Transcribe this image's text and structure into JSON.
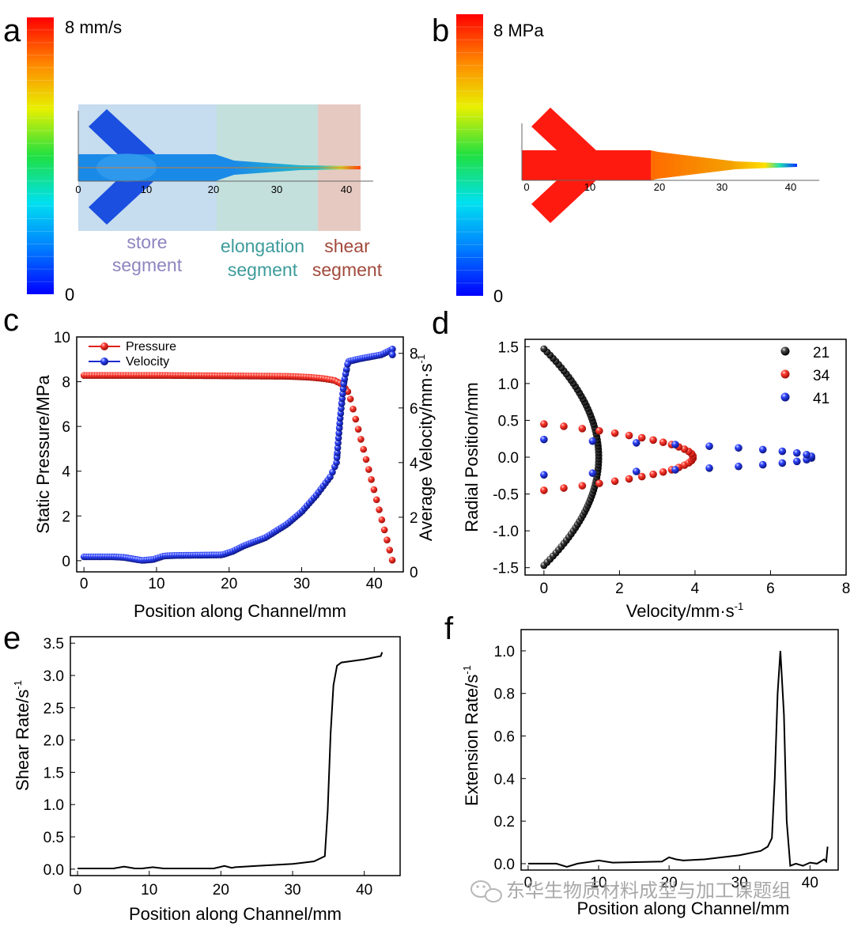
{
  "panels": {
    "a": {
      "letter": "a",
      "colorbar": {
        "max_label": "8 mm/s",
        "min_label": "0"
      },
      "axis_ticks": [
        "0",
        "10",
        "20",
        "30",
        "40"
      ],
      "segments": [
        {
          "line1": "store",
          "line2": "segment",
          "color": "#8f84c0",
          "bg": "#c6dcef"
        },
        {
          "line1": "elongation",
          "line2": "segment",
          "color": "#3e9b9b",
          "bg": "#c4e0dc"
        },
        {
          "line1": "shear",
          "line2": "segment",
          "color": "#a14a3c",
          "bg": "#e6cac2"
        }
      ]
    },
    "b": {
      "letter": "b",
      "colorbar": {
        "max_label": "8 MPa",
        "min_label": "0"
      },
      "axis_ticks": [
        "0",
        "10",
        "20",
        "30",
        "40"
      ]
    },
    "c": {
      "letter": "c"
    },
    "d": {
      "letter": "d"
    },
    "e": {
      "letter": "e"
    },
    "f": {
      "letter": "f"
    }
  },
  "watermark": {
    "text": "东华生物质材料成型与加工课题组",
    "icon": "wechat-icon"
  },
  "chart_data": [
    {
      "id": "c",
      "type": "scatter",
      "xlabel": "Position along Channel/mm",
      "ylabel": "Static Pressure/MPa",
      "ylabel_right": "Average Velocity/mm·s",
      "ylabel_right_sup": "-1",
      "xlim": [
        -1,
        44
      ],
      "ylim": [
        -0.5,
        10
      ],
      "ylim_right": [
        0,
        8.6
      ],
      "xticks": [
        0,
        10,
        20,
        30,
        40
      ],
      "yticks": [
        0,
        2,
        4,
        6,
        8,
        10
      ],
      "yticks_right": [
        0,
        2,
        4,
        6,
        8
      ],
      "legend": [
        {
          "name": "Pressure",
          "color": "#e0201c"
        },
        {
          "name": "Velocity",
          "color": "#1f2bd0"
        }
      ],
      "series": [
        {
          "name": "Pressure",
          "axis": "left",
          "color": "#e0201c",
          "x": [
            0,
            10,
            20,
            28,
            31,
            33,
            34.5,
            35.5,
            36.5,
            42.5
          ],
          "y": [
            8.28,
            8.28,
            8.26,
            8.24,
            8.2,
            8.14,
            8.06,
            7.9,
            7.5,
            0
          ]
        },
        {
          "name": "Velocity",
          "axis": "right",
          "color": "#1f2bd0",
          "x": [
            0,
            4,
            5.5,
            8,
            9.5,
            11,
            12.5,
            19,
            20.5,
            22,
            25,
            28,
            30,
            32,
            34,
            34.8,
            35.3,
            35.8,
            36.4,
            38,
            41,
            42.5
          ],
          "y": [
            0.55,
            0.55,
            0.53,
            0.42,
            0.45,
            0.58,
            0.6,
            0.62,
            0.75,
            0.95,
            1.25,
            1.75,
            2.2,
            2.8,
            3.5,
            4.0,
            5.6,
            6.9,
            7.7,
            7.8,
            7.95,
            8.15
          ]
        }
      ]
    },
    {
      "id": "d",
      "type": "scatter",
      "xlabel": "Velocity/mm·s",
      "xlabel_sup": "-1",
      "ylabel": "Radial Position/mm",
      "xlim": [
        -0.5,
        8
      ],
      "ylim": [
        -1.6,
        1.6
      ],
      "xticks": [
        0,
        2,
        4,
        6,
        8
      ],
      "yticks": [
        1.5,
        1.0,
        0.5,
        0.0,
        -0.5,
        -1.0,
        -1.5
      ],
      "ytick_labels": [
        "1.5",
        "1.0",
        "0.5",
        "0.0",
        "-0.5",
        "-1.0",
        "-1.5"
      ],
      "legend": [
        {
          "name": "21",
          "color": "#111111"
        },
        {
          "name": "34",
          "color": "#e0201c"
        },
        {
          "name": "41",
          "color": "#1f2bd0"
        }
      ],
      "series": [
        {
          "name": "21",
          "color": "#111111",
          "profile": "parabolic",
          "umax": 1.45,
          "R": 1.47,
          "n": 70
        },
        {
          "name": "34",
          "color": "#e0201c",
          "profile": "parabolic",
          "umax": 3.95,
          "R": 0.45,
          "n": 30
        },
        {
          "name": "41",
          "color": "#1f2bd0",
          "profile": "parabolic",
          "umax": 7.1,
          "R": 0.24,
          "n": 22
        }
      ]
    },
    {
      "id": "e",
      "type": "line",
      "xlabel": "Position along Channel/mm",
      "ylabel": "Shear Rate/s",
      "ylabel_sup": "-1",
      "xlim": [
        -1,
        45
      ],
      "ylim": [
        -0.1,
        3.6
      ],
      "xticks": [
        0,
        10,
        20,
        30,
        40
      ],
      "yticks": [
        0.0,
        0.5,
        1.0,
        1.5,
        2.0,
        2.5,
        3.0,
        3.5
      ],
      "ytick_labels": [
        "0.0",
        "0.5",
        "1.0",
        "1.5",
        "2.0",
        "2.5",
        "3.0",
        "3.5"
      ],
      "series": [
        {
          "name": "Shear",
          "color": "#000000",
          "x": [
            0,
            5,
            6.5,
            8,
            9,
            10.5,
            12,
            19,
            20.5,
            21.5,
            22,
            25,
            30,
            33,
            34.5,
            34.9,
            35.3,
            35.7,
            36.2,
            36.8,
            40,
            42.3,
            42.5
          ],
          "y": [
            0.01,
            0.01,
            0.04,
            0.01,
            0.01,
            0.03,
            0.01,
            0.01,
            0.05,
            0.02,
            0.03,
            0.05,
            0.08,
            0.12,
            0.2,
            0.9,
            2.1,
            2.85,
            3.15,
            3.2,
            3.25,
            3.3,
            3.36
          ]
        }
      ]
    },
    {
      "id": "f",
      "type": "line",
      "xlabel": "Position along Channel/mm",
      "ylabel": "Extension Rate/s",
      "ylabel_sup": "-1",
      "xlim": [
        -1,
        44
      ],
      "ylim": [
        -0.03,
        1.1
      ],
      "xticks": [
        0,
        10,
        20,
        30,
        40
      ],
      "yticks": [
        0.0,
        0.2,
        0.4,
        0.6,
        0.8,
        1.0
      ],
      "ytick_labels": [
        "0.0",
        "0.2",
        "0.4",
        "0.6",
        "0.8",
        "1.0"
      ],
      "series": [
        {
          "name": "Extension",
          "color": "#000000",
          "x": [
            0,
            4,
            5.5,
            7,
            9,
            10,
            11,
            12,
            19,
            20,
            21,
            22,
            25,
            30,
            33,
            34,
            34.6,
            35,
            35.4,
            35.8,
            36.3,
            36.7,
            37.2,
            38,
            39,
            40,
            41,
            42,
            42.3,
            42.5
          ],
          "y": [
            0.0,
            0.0,
            -0.015,
            0.0,
            0.01,
            0.015,
            0.01,
            0.005,
            0.01,
            0.03,
            0.02,
            0.015,
            0.02,
            0.04,
            0.06,
            0.08,
            0.12,
            0.4,
            0.8,
            1.0,
            0.7,
            0.2,
            -0.01,
            0.0,
            -0.01,
            0.005,
            0.0,
            0.02,
            0.01,
            0.08
          ]
        }
      ]
    }
  ]
}
